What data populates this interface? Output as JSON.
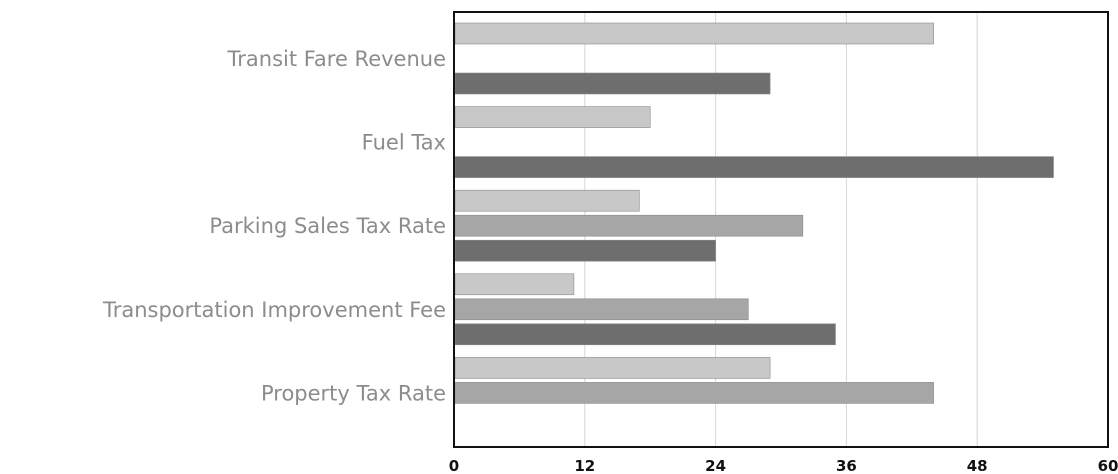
{
  "chart_data": {
    "type": "bar",
    "orientation": "horizontal",
    "categories": [
      "Transit Fare Revenue",
      "Fuel Tax",
      "Parking Sales Tax Rate",
      "Transportation Improvement Fee",
      "Property Tax Rate"
    ],
    "series": [
      {
        "values": [
          44,
          18,
          17,
          11,
          29
        ],
        "color": "#c8c8c8"
      },
      {
        "values": [
          null,
          null,
          32,
          27,
          44
        ],
        "color": "#a6a6a6"
      },
      {
        "values": [
          29,
          55,
          24,
          35,
          null
        ],
        "color": "#6e6e6e"
      }
    ],
    "xlim": [
      0,
      60
    ],
    "xticks": [
      0,
      12,
      24,
      36,
      48,
      60
    ],
    "grid": true,
    "legend": "none"
  }
}
